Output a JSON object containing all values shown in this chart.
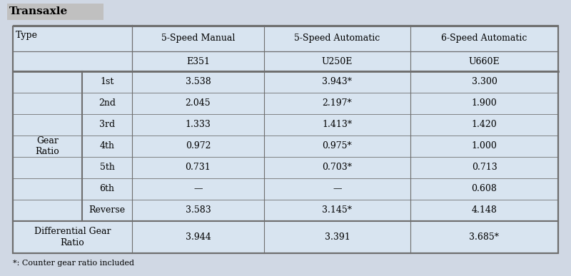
{
  "title": "Transaxle",
  "title_bg": "#c8c8c8",
  "page_bg": "#d0d8e4",
  "table_bg": "#d8e4f0",
  "border_color": "#6e6e6e",
  "col_headers_row1": [
    "5-Speed Manual",
    "5-Speed Automatic",
    "6-Speed Automatic"
  ],
  "col_headers_row2": [
    "E351",
    "U250E",
    "U660E"
  ],
  "row_group_label": "Gear\nRatio",
  "type_label": "Type",
  "rows": [
    [
      "1st",
      "3.538",
      "3.943*",
      "3.300"
    ],
    [
      "2nd",
      "2.045",
      "2.197*",
      "1.900"
    ],
    [
      "3rd",
      "1.333",
      "1.413*",
      "1.420"
    ],
    [
      "4th",
      "0.972",
      "0.975*",
      "1.000"
    ],
    [
      "5th",
      "0.731",
      "0.703*",
      "0.713"
    ],
    [
      "6th",
      "—",
      "—",
      "0.608"
    ],
    [
      "Reverse",
      "3.583",
      "3.145*",
      "4.148"
    ]
  ],
  "diff_row": [
    "Differential Gear\nRatio",
    "3.944",
    "3.391",
    "3.685*"
  ],
  "footnote": "*: Counter gear ratio included",
  "font_size": 9,
  "font_family": "DejaVu Serif"
}
